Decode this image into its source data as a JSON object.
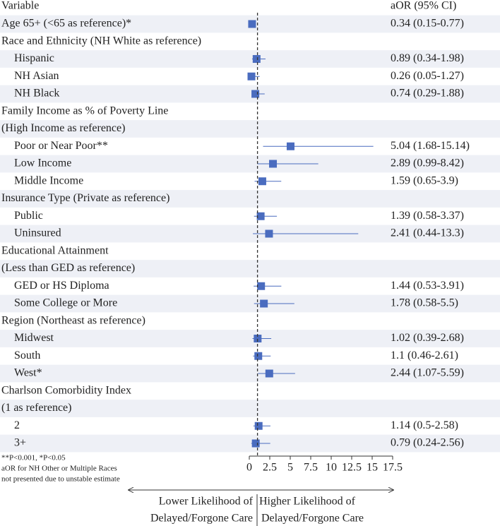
{
  "chart_data": {
    "type": "forest",
    "column_headers": [
      "Variable",
      "aOR (95% CI)"
    ],
    "categories": [
      "Age 65+ (<65 as reference)*",
      "Race and Ethnicity (NH White as reference)",
      "Hispanic",
      "NH Asian",
      "NH Black",
      "Family Income as % of Poverty Line",
      "(High Income as reference)",
      "Poor or Near Poor**",
      "Low Income",
      "Middle Income",
      "Insurance Type (Private as reference)",
      "Public",
      "Uninsured",
      "Educational Attainment",
      "(Less than GED as reference)",
      "GED or HS Diploma",
      "Some College or More",
      "Region (Northeast as reference)",
      "Midwest",
      "South",
      "West*",
      "Charlson Comorbidity Index",
      "(1 as reference)",
      "2",
      "3+"
    ],
    "levels": [
      0,
      0,
      1,
      1,
      1,
      0,
      0,
      1,
      1,
      1,
      0,
      1,
      1,
      0,
      0,
      1,
      1,
      0,
      1,
      1,
      1,
      0,
      0,
      1,
      1
    ],
    "values": [
      0.34,
      null,
      0.89,
      0.26,
      0.74,
      null,
      null,
      5.04,
      2.89,
      1.59,
      null,
      1.39,
      2.41,
      null,
      null,
      1.44,
      1.78,
      null,
      1.02,
      1.1,
      2.44,
      null,
      null,
      1.14,
      0.79
    ],
    "lower": [
      0.15,
      null,
      0.34,
      0.05,
      0.29,
      null,
      null,
      1.68,
      0.99,
      0.65,
      null,
      0.58,
      0.44,
      null,
      null,
      0.53,
      0.58,
      null,
      0.39,
      0.46,
      1.07,
      null,
      null,
      0.5,
      0.24
    ],
    "upper": [
      0.77,
      null,
      1.98,
      1.27,
      1.88,
      null,
      null,
      15.14,
      8.42,
      3.9,
      null,
      3.37,
      13.3,
      null,
      null,
      3.91,
      5.5,
      null,
      2.68,
      2.61,
      5.59,
      null,
      null,
      2.58,
      2.56
    ],
    "value_labels": [
      "0.34 (0.15-0.77)",
      null,
      "0.89 (0.34-1.98)",
      "0.26 (0.05-1.27)",
      "0.74 (0.29-1.88)",
      null,
      null,
      "5.04 (1.68-15.14)",
      "2.89 (0.99-8.42)",
      "1.59 (0.65-3.9)",
      null,
      "1.39 (0.58-3.37)",
      "2.41 (0.44-13.3)",
      null,
      null,
      "1.44 (0.53-3.91)",
      "1.78 (0.58-5.5)",
      null,
      "1.02 (0.39-2.68)",
      "1.1 (0.46-2.61)",
      "2.44 (1.07-5.59)",
      null,
      null,
      "1.14 (0.5-2.58)",
      "0.79 (0.24-2.56)"
    ],
    "color": "#4a6cbf",
    "stripe_color": "#eef0f6",
    "ref_line": 1,
    "xlim": [
      0,
      17.5
    ],
    "xticks": [
      0,
      2.5,
      5,
      7.5,
      10,
      12.5,
      15,
      17.5
    ],
    "footnotes": [
      "**P<0.001, *P<0.05",
      "aOR for NH Other or Multiple Races",
      "not presented due to unstable estimate"
    ],
    "direction_labels": {
      "left": [
        "Lower Likelihood of",
        "Delayed/Forgone Care"
      ],
      "right": [
        "Higher Likelihood of",
        "Delayed/Forgone Care"
      ]
    }
  }
}
